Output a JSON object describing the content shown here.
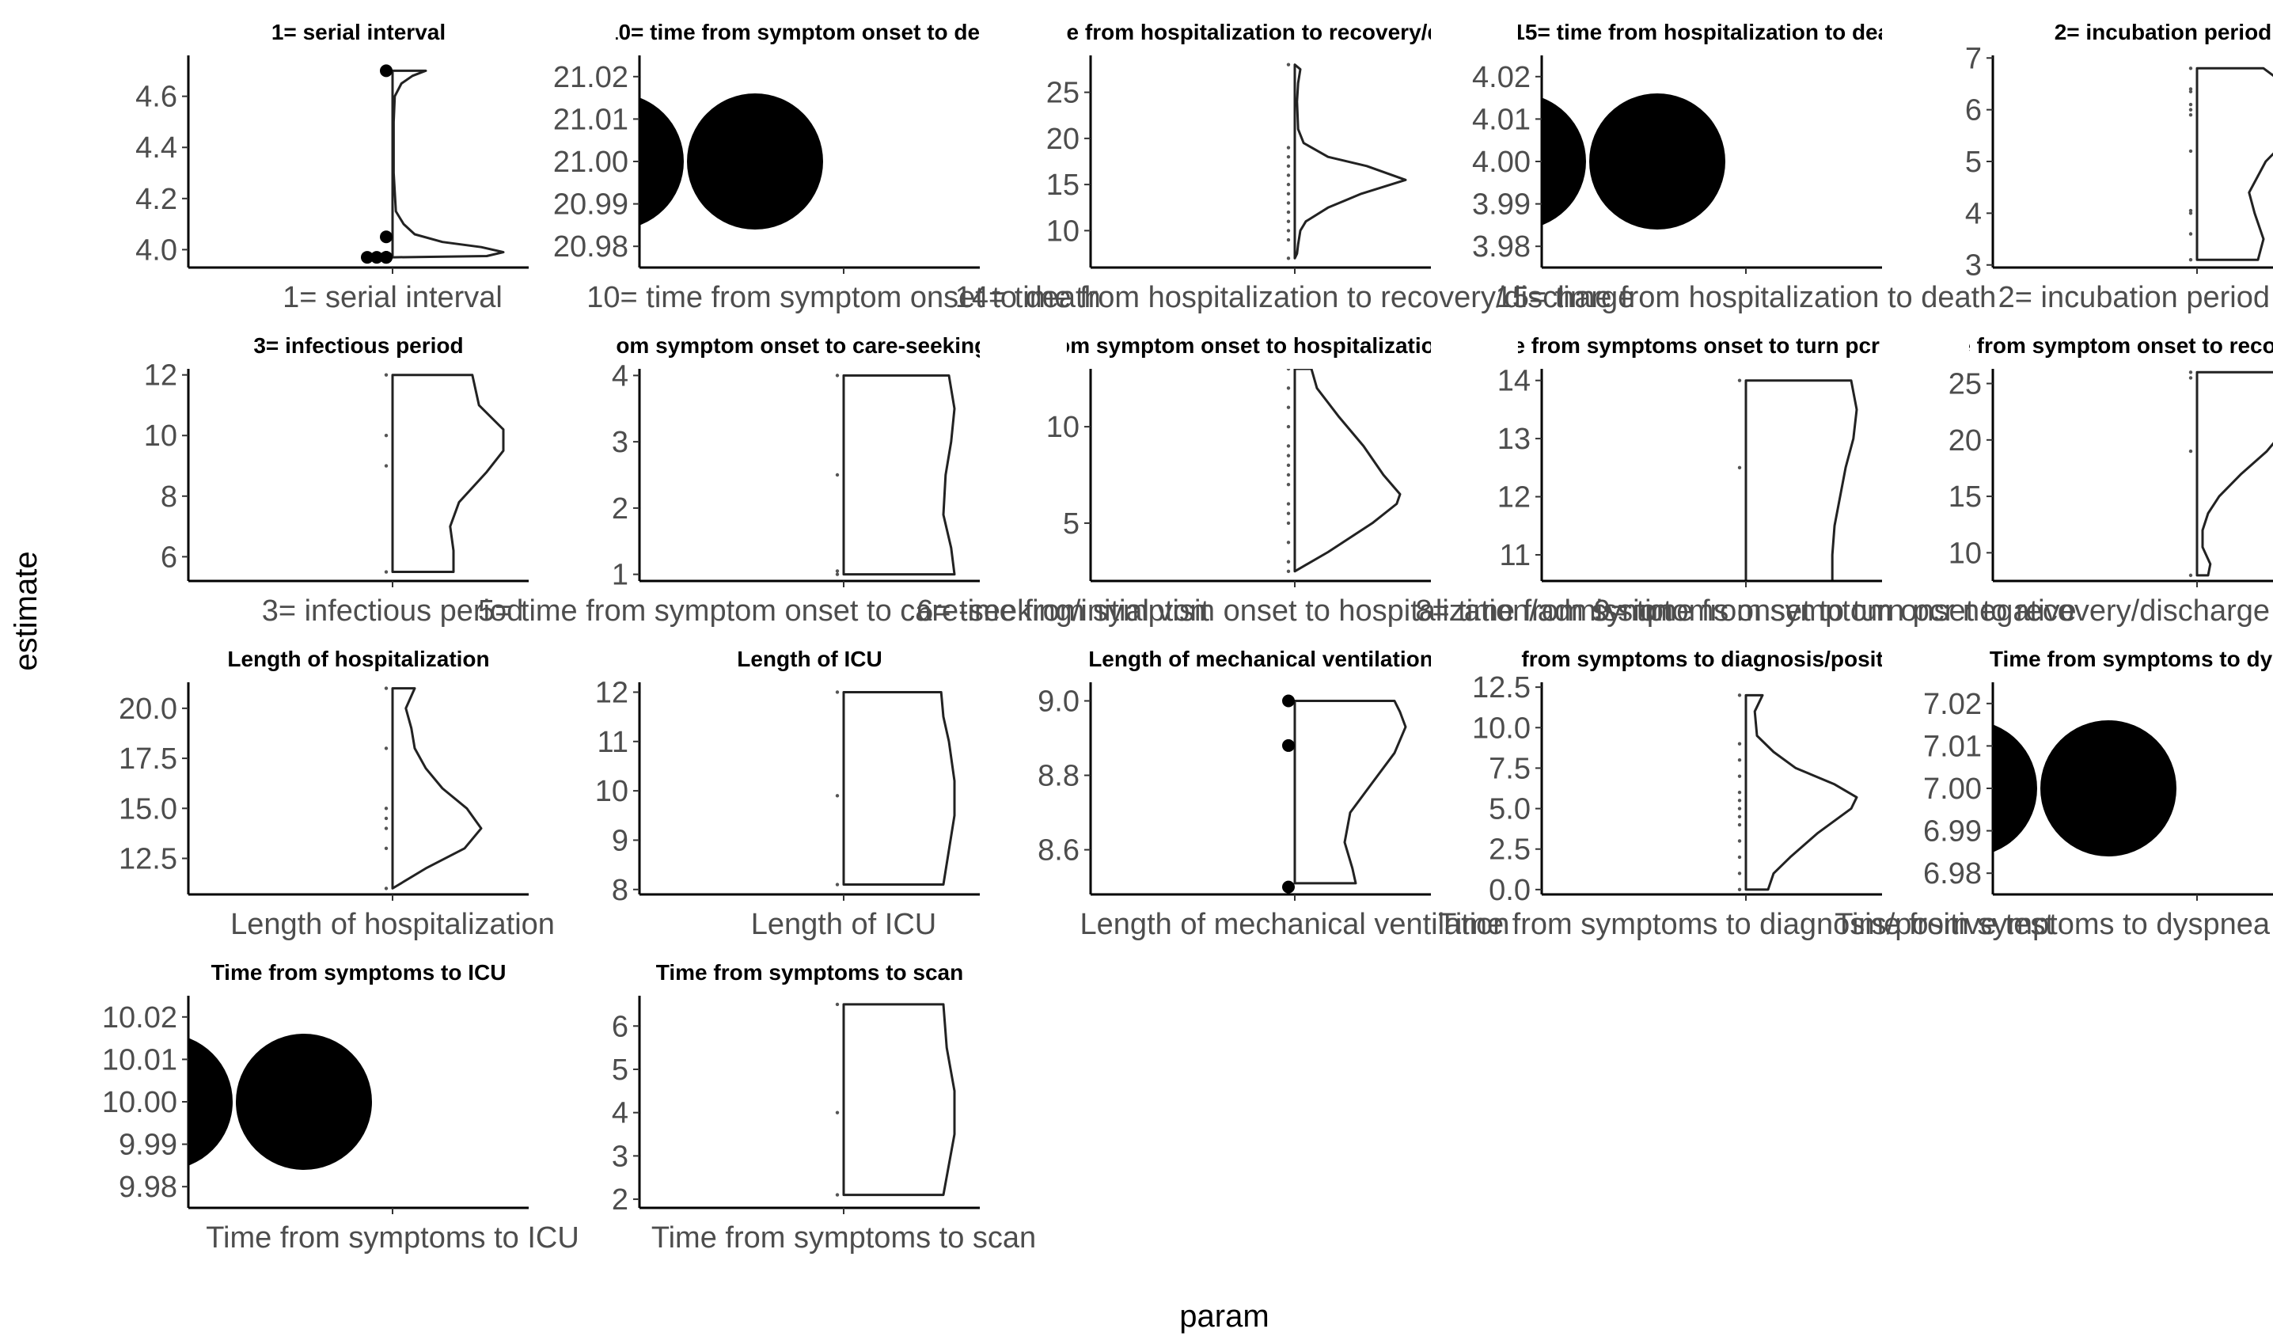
{
  "chart_data": {
    "type": "violin-facets",
    "xlabel": "param",
    "ylabel": "estimate",
    "panels": [
      {
        "title": "1= serial interval",
        "label": "1= serial interval",
        "yticks": [
          4.0,
          4.2,
          4.4,
          4.6
        ],
        "ylim": [
          3.93,
          4.76
        ],
        "points": [
          3.97,
          3.97,
          3.97,
          4.05,
          4.7
        ],
        "point_size": "small",
        "density": [
          [
            3.97,
            0.0
          ],
          [
            3.975,
            0.85
          ],
          [
            3.99,
            1.0
          ],
          [
            4.01,
            0.8
          ],
          [
            4.03,
            0.45
          ],
          [
            4.06,
            0.2
          ],
          [
            4.1,
            0.1
          ],
          [
            4.15,
            0.03
          ],
          [
            4.3,
            0.01
          ],
          [
            4.5,
            0.01
          ],
          [
            4.6,
            0.02
          ],
          [
            4.65,
            0.08
          ],
          [
            4.68,
            0.18
          ],
          [
            4.7,
            0.3
          ]
        ]
      },
      {
        "title": "10= time from symptom onset to death",
        "label": "10= time from symptom onset to death",
        "yticks": [
          20.98,
          20.99,
          21.0,
          21.01,
          21.02
        ],
        "ylim": [
          20.975,
          21.025
        ],
        "points": [
          21.0
        ],
        "point_size": "huge",
        "density": []
      },
      {
        "title": "14= time from hospitalization to recovery/discharge",
        "label": "14= time from hospitalization to recovery/discharge",
        "yticks": [
          10,
          15,
          20,
          25
        ],
        "ylim": [
          6,
          29
        ],
        "points": [
          7,
          9,
          10,
          11,
          12,
          13,
          14,
          15,
          16,
          17,
          18,
          19,
          28
        ],
        "point_size": "tiny",
        "density": [
          [
            7,
            0.0
          ],
          [
            7.5,
            0.02
          ],
          [
            8.5,
            0.03
          ],
          [
            10,
            0.05
          ],
          [
            11,
            0.1
          ],
          [
            12.5,
            0.3
          ],
          [
            14,
            0.6
          ],
          [
            15.5,
            1.0
          ],
          [
            17,
            0.65
          ],
          [
            18,
            0.3
          ],
          [
            19.5,
            0.08
          ],
          [
            21,
            0.03
          ],
          [
            24,
            0.02
          ],
          [
            26,
            0.03
          ],
          [
            27.5,
            0.05
          ],
          [
            28,
            0.0
          ]
        ]
      },
      {
        "title": "15= time from hospitalization to death",
        "label": "15= time from hospitalization to death",
        "yticks": [
          3.98,
          3.99,
          4.0,
          4.01,
          4.02
        ],
        "ylim": [
          3.975,
          4.025
        ],
        "points": [
          4.0
        ],
        "point_size": "huge",
        "density": []
      },
      {
        "title": "2= incubation period",
        "label": "2= incubation period",
        "yticks": [
          3,
          4,
          5,
          6,
          7
        ],
        "ylim": [
          2.95,
          7.05
        ],
        "points": [
          3.1,
          3.6,
          4.0,
          4.05,
          5.2,
          5.9,
          6.0,
          6.1,
          6.35,
          6.4,
          6.8
        ],
        "point_size": "tiny",
        "density": [
          [
            3.1,
            0.55
          ],
          [
            3.5,
            0.6
          ],
          [
            4.0,
            0.52
          ],
          [
            4.4,
            0.47
          ],
          [
            5.0,
            0.62
          ],
          [
            5.5,
            0.85
          ],
          [
            6.0,
            1.0
          ],
          [
            6.4,
            0.85
          ],
          [
            6.8,
            0.6
          ]
        ]
      },
      {
        "title": "3= infectious period",
        "label": "3= infectious period",
        "yticks": [
          6,
          8,
          10,
          12
        ],
        "ylim": [
          5.2,
          12.2
        ],
        "points": [
          5.5,
          9,
          10,
          12
        ],
        "point_size": "tiny",
        "density": [
          [
            5.5,
            0.55
          ],
          [
            6.2,
            0.55
          ],
          [
            7,
            0.52
          ],
          [
            7.8,
            0.6
          ],
          [
            8.8,
            0.85
          ],
          [
            9.5,
            1.0
          ],
          [
            10.2,
            1.0
          ],
          [
            11,
            0.78
          ],
          [
            12,
            0.72
          ]
        ]
      },
      {
        "title": "5= time from symptom onset to care-seeking/initial visit",
        "label": "5= time from symptom onset to care-seeking/initial visit",
        "yticks": [
          1,
          2,
          3,
          4
        ],
        "ylim": [
          0.9,
          4.1
        ],
        "points": [
          1.0,
          1.05,
          2.5,
          4.0
        ],
        "point_size": "tiny",
        "density": [
          [
            1.0,
            1.0
          ],
          [
            1.4,
            0.97
          ],
          [
            1.9,
            0.9
          ],
          [
            2.5,
            0.92
          ],
          [
            3.0,
            0.97
          ],
          [
            3.5,
            1.0
          ],
          [
            4.0,
            0.95
          ]
        ]
      },
      {
        "title": "6= time from symptom onset to hospitalization/admission",
        "label": "6= time from symptom onset to hospitalization/admission",
        "yticks": [
          5,
          10
        ],
        "ylim": [
          2,
          13
        ],
        "points": [
          2.5,
          3,
          4,
          5,
          5.5,
          6,
          7,
          7.5,
          8,
          8.5,
          9,
          10,
          11,
          12,
          13
        ],
        "point_size": "tiny",
        "density": [
          [
            2.5,
            0.0
          ],
          [
            3.5,
            0.3
          ],
          [
            5,
            0.7
          ],
          [
            6,
            0.92
          ],
          [
            6.5,
            0.95
          ],
          [
            7.5,
            0.8
          ],
          [
            9,
            0.62
          ],
          [
            10.5,
            0.4
          ],
          [
            12,
            0.2
          ],
          [
            13,
            0.15
          ]
        ]
      },
      {
        "title": "8= time from symptoms onset to turn pcr negative",
        "label": "8= time from symptoms onset to turn pcr negative",
        "yticks": [
          11,
          12,
          13,
          14
        ],
        "ylim": [
          10.55,
          14.2
        ],
        "points": [
          10.5,
          12.5,
          14
        ],
        "point_size": "tiny",
        "density": [
          [
            10.5,
            0.78
          ],
          [
            11,
            0.78
          ],
          [
            11.5,
            0.8
          ],
          [
            12,
            0.85
          ],
          [
            12.5,
            0.9
          ],
          [
            13,
            0.97
          ],
          [
            13.5,
            1.0
          ],
          [
            14,
            0.95
          ]
        ]
      },
      {
        "title": "9= time from symptom onset to recovery/discharge",
        "label": "9= time from symptom onset to recovery/discharge",
        "yticks": [
          10,
          15,
          20,
          25
        ],
        "ylim": [
          7.5,
          26.3
        ],
        "points": [
          8,
          19,
          25.5,
          26
        ],
        "point_size": "tiny",
        "density": [
          [
            8,
            0.1
          ],
          [
            9,
            0.12
          ],
          [
            10.5,
            0.05
          ],
          [
            12,
            0.05
          ],
          [
            13.5,
            0.1
          ],
          [
            15,
            0.2
          ],
          [
            17,
            0.4
          ],
          [
            19,
            0.63
          ],
          [
            21,
            0.8
          ],
          [
            22.5,
            0.88
          ],
          [
            24,
            0.85
          ],
          [
            26,
            0.88
          ]
        ]
      },
      {
        "title": "Length of hospitalization",
        "label": "Length of hospitalization",
        "yticks": [
          12.5,
          15.0,
          17.5,
          20.0
        ],
        "ylim": [
          10.7,
          21.3
        ],
        "points": [
          11,
          13,
          14,
          14.5,
          15,
          18,
          21
        ],
        "point_size": "tiny",
        "density": [
          [
            11,
            0.0
          ],
          [
            12,
            0.3
          ],
          [
            13,
            0.65
          ],
          [
            14,
            0.8
          ],
          [
            15,
            0.67
          ],
          [
            16,
            0.45
          ],
          [
            17,
            0.3
          ],
          [
            18,
            0.2
          ],
          [
            19,
            0.17
          ],
          [
            20,
            0.12
          ],
          [
            21,
            0.2
          ]
        ]
      },
      {
        "title": "Length of ICU",
        "label": "Length of ICU",
        "yticks": [
          8,
          9,
          10,
          11,
          12
        ],
        "ylim": [
          7.9,
          12.2
        ],
        "points": [
          8.1,
          9.9,
          12
        ],
        "point_size": "tiny",
        "density": [
          [
            8.1,
            0.9
          ],
          [
            8.8,
            0.95
          ],
          [
            9.5,
            1.0
          ],
          [
            10.2,
            1.0
          ],
          [
            11,
            0.95
          ],
          [
            11.5,
            0.9
          ],
          [
            12,
            0.88
          ]
        ]
      },
      {
        "title": "Length of mechanical ventilation",
        "label": "Length of mechanical ventilation",
        "yticks": [
          8.6,
          8.8,
          9.0
        ],
        "ylim": [
          8.48,
          9.05
        ],
        "points": [
          8.5,
          8.88,
          9.0
        ],
        "point_size": "small",
        "density": [
          [
            8.51,
            0.55
          ],
          [
            8.55,
            0.52
          ],
          [
            8.62,
            0.45
          ],
          [
            8.7,
            0.5
          ],
          [
            8.78,
            0.7
          ],
          [
            8.86,
            0.9
          ],
          [
            8.93,
            1.0
          ],
          [
            8.97,
            0.95
          ],
          [
            9.0,
            0.9
          ]
        ]
      },
      {
        "title": "Time from symptoms to diagnosis/positive test",
        "label": "Time from symptoms to diagnosis/positive test",
        "yticks": [
          0.0,
          2.5,
          5.0,
          7.5,
          10.0,
          12.5
        ],
        "ylim": [
          -0.3,
          12.8
        ],
        "points": [
          0,
          1,
          2,
          3,
          4,
          4.5,
          5,
          5.5,
          6,
          7,
          8,
          9,
          12
        ],
        "point_size": "tiny",
        "density": [
          [
            0.0,
            0.2
          ],
          [
            1,
            0.25
          ],
          [
            2,
            0.4
          ],
          [
            3.5,
            0.65
          ],
          [
            5,
            0.95
          ],
          [
            5.7,
            1.0
          ],
          [
            6.5,
            0.8
          ],
          [
            7.5,
            0.45
          ],
          [
            8.5,
            0.25
          ],
          [
            9.5,
            0.1
          ],
          [
            11,
            0.08
          ],
          [
            12,
            0.15
          ]
        ]
      },
      {
        "title": "Time from symptoms to dyspnea",
        "label": "Time from symptoms to dyspnea",
        "yticks": [
          6.98,
          6.99,
          7.0,
          7.01,
          7.02
        ],
        "ylim": [
          6.975,
          7.025
        ],
        "points": [
          7.0
        ],
        "point_size": "huge",
        "density": []
      },
      {
        "title": "Time from symptoms to ICU",
        "label": "Time from symptoms to ICU",
        "yticks": [
          9.98,
          9.99,
          10.0,
          10.01,
          10.02
        ],
        "ylim": [
          9.975,
          10.025
        ],
        "points": [
          10.0
        ],
        "point_size": "huge",
        "density": []
      },
      {
        "title": "Time from symptoms to scan",
        "label": "Time from symptoms to scan",
        "yticks": [
          2,
          3,
          4,
          5,
          6
        ],
        "ylim": [
          1.8,
          6.7
        ],
        "points": [
          2.1,
          4.0,
          6.5
        ],
        "point_size": "tiny",
        "density": [
          [
            2.1,
            0.9
          ],
          [
            2.8,
            0.95
          ],
          [
            3.5,
            1.0
          ],
          [
            4.5,
            1.0
          ],
          [
            5.5,
            0.93
          ],
          [
            6.5,
            0.9
          ]
        ]
      }
    ]
  }
}
